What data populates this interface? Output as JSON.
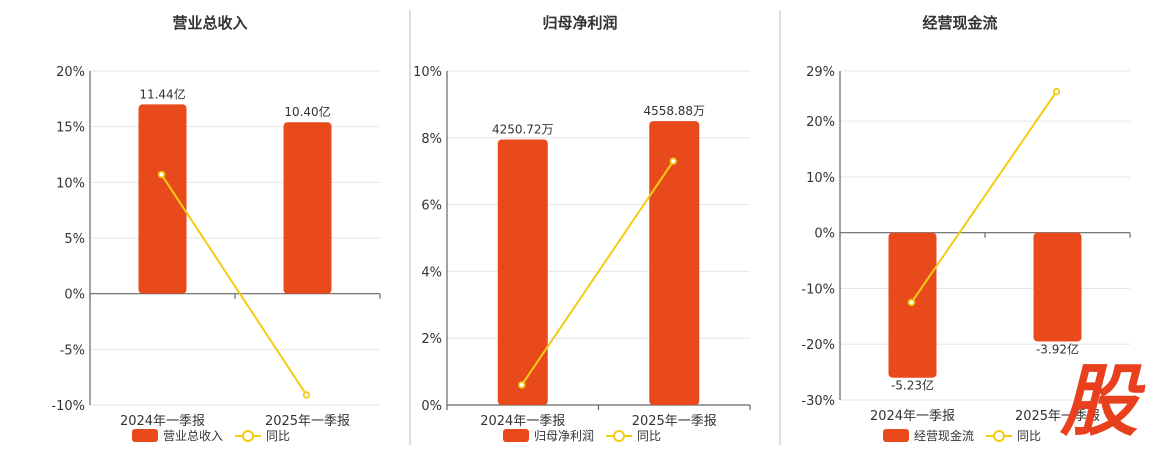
{
  "colors": {
    "bar": "#e84a1c",
    "line": "#f2cc14",
    "watermark": "#e8401c"
  },
  "watermark": {
    "text": "股"
  },
  "chart_data": [
    {
      "type": "bar",
      "title": "营业总收入",
      "categories": [
        "2024年一季报",
        "2025年一季报"
      ],
      "ylim": [
        -10,
        20
      ],
      "yticks": [
        -10,
        -5,
        0,
        5,
        10,
        15,
        20
      ],
      "ytick_labels": [
        "-10%",
        "-5%",
        "0%",
        "5%",
        "10%",
        "15%",
        "20%"
      ],
      "series": [
        {
          "name": "营业总收入",
          "kind": "bar",
          "values": [
            17.0,
            15.4
          ],
          "data_labels": [
            "11.44亿",
            "10.40亿"
          ]
        },
        {
          "name": "同比",
          "kind": "line",
          "values": [
            10.7,
            -9.1
          ]
        }
      ],
      "legend": "bottom-center"
    },
    {
      "type": "bar",
      "title": "归母净利润",
      "categories": [
        "2024年一季报",
        "2025年一季报"
      ],
      "ylim": [
        0,
        10
      ],
      "yticks": [
        0,
        2,
        4,
        6,
        8,
        10
      ],
      "ytick_labels": [
        "0%",
        "2%",
        "4%",
        "6%",
        "8%",
        "10%"
      ],
      "series": [
        {
          "name": "归母净利润",
          "kind": "bar",
          "values": [
            7.95,
            8.5
          ],
          "data_labels": [
            "4250.72万",
            "4558.88万"
          ]
        },
        {
          "name": "同比",
          "kind": "line",
          "values": [
            0.6,
            7.3
          ]
        }
      ],
      "legend": "bottom-center"
    },
    {
      "type": "bar",
      "title": "经营现金流",
      "categories": [
        "2024年一季报",
        "2025年一季报"
      ],
      "ylim": [
        -30,
        29
      ],
      "yticks": [
        -30,
        -20,
        -10,
        0,
        10,
        20,
        29
      ],
      "ytick_labels": [
        "-30%",
        "-20%",
        "-10%",
        "0%",
        "10%",
        "20%",
        "29%"
      ],
      "series": [
        {
          "name": "经营现金流",
          "kind": "bar",
          "values": [
            -26.0,
            -19.5
          ],
          "data_labels": [
            "-5.23亿",
            "-3.92亿"
          ]
        },
        {
          "name": "同比",
          "kind": "line",
          "values": [
            -12.5,
            25.3
          ]
        }
      ],
      "legend": "bottom-center"
    }
  ]
}
